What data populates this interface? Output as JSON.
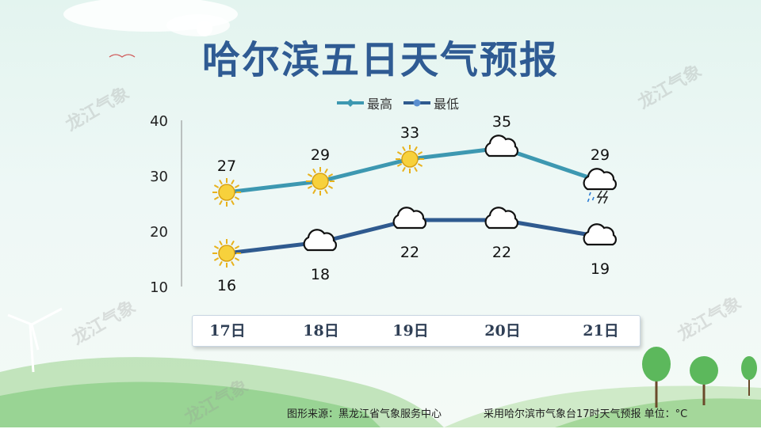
{
  "title": "哈尔滨五日天气预报",
  "watermark_text": "龙江气象",
  "chart_data": {
    "type": "line",
    "categories": [
      "17日",
      "18日",
      "19日",
      "20日",
      "21日"
    ],
    "series": [
      {
        "name": "最高",
        "values": [
          27,
          29,
          33,
          35,
          29
        ],
        "color": "#3d98b1"
      },
      {
        "name": "最低",
        "values": [
          16,
          18,
          22,
          22,
          19
        ],
        "color": "#2f5a8f"
      }
    ],
    "high_icons": [
      "sun",
      "sun",
      "sun",
      "cloud",
      "thunderstorm"
    ],
    "low_icons": [
      "sun",
      "cloud",
      "cloud",
      "cloud",
      "cloud"
    ],
    "y_ticks": [
      "40",
      "30",
      "20",
      "10"
    ],
    "ylim": [
      10,
      40
    ],
    "grid": false,
    "legend_position": "top"
  },
  "footer": {
    "source": "图形来源：黑龙江省气象服务中心",
    "note": "采用哈尔滨市气象台17时天气预报 单位：°C"
  }
}
